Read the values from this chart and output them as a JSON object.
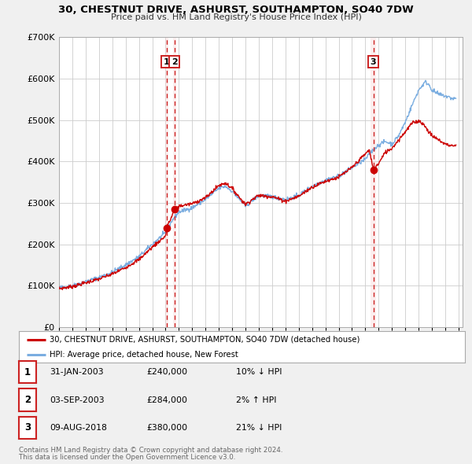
{
  "title": "30, CHESTNUT DRIVE, ASHURST, SOUTHAMPTON, SO40 7DW",
  "subtitle": "Price paid vs. HM Land Registry's House Price Index (HPI)",
  "legend_red": "30, CHESTNUT DRIVE, ASHURST, SOUTHAMPTON, SO40 7DW (detached house)",
  "legend_blue": "HPI: Average price, detached house, New Forest",
  "footer1": "Contains HM Land Registry data © Crown copyright and database right 2024.",
  "footer2": "This data is licensed under the Open Government Licence v3.0.",
  "transactions": [
    {
      "num": 1,
      "x": 2003.08,
      "price": 240000
    },
    {
      "num": 2,
      "x": 2003.67,
      "price": 284000
    },
    {
      "num": 3,
      "x": 2018.6,
      "price": 380000
    }
  ],
  "table_rows": [
    {
      "num": 1,
      "date_str": "31-JAN-2003",
      "price_str": "£240,000",
      "pct_str": "10% ↓ HPI"
    },
    {
      "num": 2,
      "date_str": "03-SEP-2003",
      "price_str": "£284,000",
      "pct_str": "2% ↑ HPI"
    },
    {
      "num": 3,
      "date_str": "09-AUG-2018",
      "price_str": "£380,000",
      "pct_str": "21% ↓ HPI"
    }
  ],
  "ylim": [
    0,
    700000
  ],
  "yticks": [
    0,
    100000,
    200000,
    300000,
    400000,
    500000,
    600000,
    700000
  ],
  "xlim_start": 1995.0,
  "xlim_end": 2025.3,
  "background_color": "#f0f0f0",
  "plot_bg": "#ffffff",
  "grid_color": "#cccccc",
  "red_color": "#cc0000",
  "blue_color": "#7aade0",
  "vline_color": "#cc2222",
  "shade_color": "#f8d0d0"
}
